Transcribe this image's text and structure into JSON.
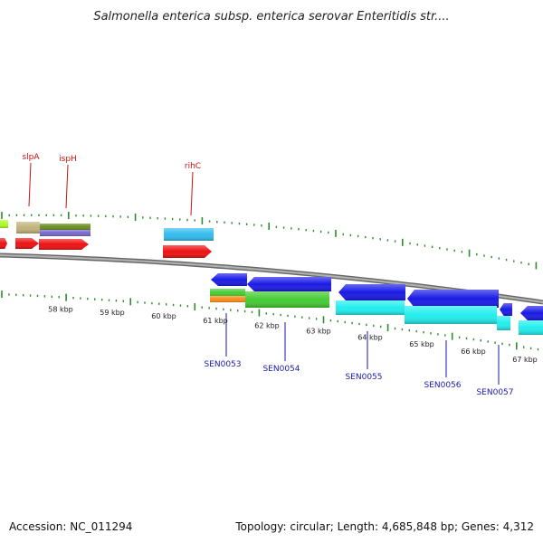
{
  "title": "Salmonella enterica subsp. enterica serovar Enteritidis str....",
  "footer": {
    "accession": "Accession: NC_011294",
    "summary": "Topology: circular; Length: 4,685,848 bp; Genes: 4,312"
  },
  "colors": {
    "backbone": "#8a8a8a",
    "tick": "#2e8b2e",
    "red": "#ee1111",
    "blue": "#1a1ae6",
    "cyan": "#22eeee",
    "green": "#44cc33",
    "olive": "#6b8e23",
    "tan": "#bfb27a",
    "lime": "#aaff22",
    "purple": "#7766cc",
    "orange": "#ff8c1a",
    "skyblue": "#33bbee",
    "top_label": "#cc1111",
    "bottom_label": "#1a1aaa"
  },
  "top_labels": [
    {
      "id": "slpA",
      "text": "slpA"
    },
    {
      "id": "ispH",
      "text": "ispH"
    },
    {
      "id": "rihC",
      "text": "rihC"
    }
  ],
  "bottom_labels": [
    {
      "id": "SEN0053",
      "text": "SEN0053"
    },
    {
      "id": "SEN0054",
      "text": "SEN0054"
    },
    {
      "id": "SEN0055",
      "text": "SEN0055"
    },
    {
      "id": "SEN0056",
      "text": "SEN0056"
    },
    {
      "id": "SEN0057",
      "text": "SEN0057"
    }
  ],
  "kbp_labels": [
    "58 kbp",
    "59 kbp",
    "60 kbp",
    "61 kbp",
    "62 kbp",
    "63 kbp",
    "64 kbp",
    "65 kbp",
    "66 kbp",
    "67 kbp"
  ]
}
